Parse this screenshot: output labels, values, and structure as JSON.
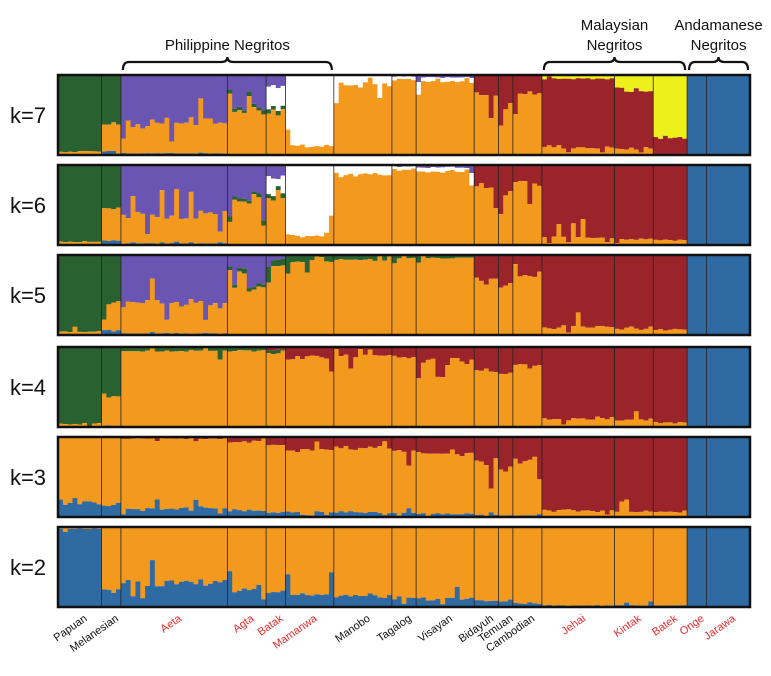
{
  "chart_data": {
    "type": "stacked-bar",
    "title": "",
    "colors": {
      "dark_green": "#2a6131",
      "orange": "#f39a1e",
      "blue": "#2f6aa3",
      "red": "#9b242b",
      "purple": "#6a55b3",
      "white": "#ffffff",
      "yellow": "#eef01c",
      "black_label": "#111111",
      "red_label": "#e52d2d"
    },
    "group_labels": [
      {
        "lines": [
          "Philippine Negritos"
        ],
        "pops": [
          "Aeta",
          "Mamanwa"
        ]
      },
      {
        "lines": [
          "Malaysian",
          "Negritos"
        ],
        "pops": [
          "Jehai",
          "Batek"
        ]
      },
      {
        "lines": [
          "Andamanese",
          "Negritos"
        ],
        "pops": [
          "Onge",
          "Jarawa"
        ]
      }
    ],
    "populations": [
      {
        "name": "Papuan",
        "color_key": "black_label",
        "n": 9
      },
      {
        "name": "Melanesian",
        "color_key": "black_label",
        "n": 4
      },
      {
        "name": "Aeta",
        "color_key": "red_label",
        "n": 22
      },
      {
        "name": "Agta",
        "color_key": "red_label",
        "n": 8
      },
      {
        "name": "Batak",
        "color_key": "red_label",
        "n": 4
      },
      {
        "name": "Mamanwa",
        "color_key": "red_label",
        "n": 10
      },
      {
        "name": "Manobo",
        "color_key": "black_label",
        "n": 12
      },
      {
        "name": "Tagalog",
        "color_key": "black_label",
        "n": 5
      },
      {
        "name": "Visayan",
        "color_key": "black_label",
        "n": 12
      },
      {
        "name": "Bidayuh",
        "color_key": "black_label",
        "n": 5
      },
      {
        "name": "Temuan",
        "color_key": "black_label",
        "n": 3
      },
      {
        "name": "Cambodian",
        "color_key": "black_label",
        "n": 6
      },
      {
        "name": "Jehai",
        "color_key": "red_label",
        "n": 15
      },
      {
        "name": "Kintak",
        "color_key": "red_label",
        "n": 8
      },
      {
        "name": "Batek",
        "color_key": "red_label",
        "n": 7
      },
      {
        "name": "Onge",
        "color_key": "red_label",
        "n": 4
      },
      {
        "name": "Jarawa",
        "color_key": "red_label",
        "n": 9
      }
    ],
    "panels": [
      {
        "k_label": "k=7",
        "proportions": {
          "Papuan": {
            "dark_green": 0.96,
            "orange": 0.04
          },
          "Melanesian": {
            "dark_green": 0.6,
            "orange": 0.35,
            "blue": 0.05
          },
          "Aeta": {
            "purple": 0.6,
            "orange": 0.38,
            "blue": 0.02
          },
          "Agta": {
            "purple": 0.4,
            "orange": 0.56,
            "dark_green": 0.04
          },
          "Batak": {
            "purple": 0.15,
            "white": 0.25,
            "orange": 0.55,
            "dark_green": 0.05
          },
          "Mamanwa": {
            "white": 0.88,
            "orange": 0.12
          },
          "Manobo": {
            "white": 0.12,
            "orange": 0.88
          },
          "Tagalog": {
            "purple": 0.02,
            "white": 0.04,
            "orange": 0.94
          },
          "Visayan": {
            "purple": 0.03,
            "white": 0.05,
            "orange": 0.92
          },
          "Bidayuh": {
            "red": 0.25,
            "orange": 0.75
          },
          "Temuan": {
            "red": 0.35,
            "orange": 0.65
          },
          "Cambodian": {
            "red": 0.22,
            "orange": 0.78
          },
          "Jehai": {
            "yellow": 0.05,
            "red": 0.85,
            "orange": 0.1
          },
          "Kintak": {
            "yellow": 0.18,
            "red": 0.74,
            "orange": 0.08
          },
          "Batek": {
            "yellow": 0.78,
            "red": 0.22
          },
          "Onge": {
            "blue": 1.0
          },
          "Jarawa": {
            "blue": 1.0
          }
        }
      },
      {
        "k_label": "k=6",
        "proportions": {
          "Papuan": {
            "dark_green": 0.96,
            "orange": 0.04
          },
          "Melanesian": {
            "dark_green": 0.6,
            "orange": 0.35,
            "blue": 0.05
          },
          "Aeta": {
            "purple": 0.62,
            "orange": 0.36,
            "blue": 0.02
          },
          "Agta": {
            "purple": 0.4,
            "orange": 0.56,
            "dark_green": 0.04
          },
          "Batak": {
            "purple": 0.15,
            "white": 0.25,
            "orange": 0.55,
            "dark_green": 0.05
          },
          "Mamanwa": {
            "white": 0.88,
            "orange": 0.12
          },
          "Manobo": {
            "white": 0.12,
            "orange": 0.88
          },
          "Tagalog": {
            "purple": 0.02,
            "white": 0.04,
            "orange": 0.94
          },
          "Visayan": {
            "purple": 0.03,
            "white": 0.05,
            "orange": 0.92
          },
          "Bidayuh": {
            "red": 0.25,
            "orange": 0.75
          },
          "Temuan": {
            "red": 0.35,
            "orange": 0.65
          },
          "Cambodian": {
            "red": 0.22,
            "orange": 0.78
          },
          "Jehai": {
            "red": 0.9,
            "orange": 0.1
          },
          "Kintak": {
            "red": 0.92,
            "orange": 0.08
          },
          "Batek": {
            "red": 0.94,
            "orange": 0.06
          },
          "Onge": {
            "blue": 1.0
          },
          "Jarawa": {
            "blue": 1.0
          }
        }
      },
      {
        "k_label": "k=5",
        "proportions": {
          "Papuan": {
            "dark_green": 0.96,
            "orange": 0.04
          },
          "Melanesian": {
            "dark_green": 0.6,
            "orange": 0.35,
            "blue": 0.05
          },
          "Aeta": {
            "purple": 0.6,
            "orange": 0.38,
            "blue": 0.02
          },
          "Agta": {
            "purple": 0.38,
            "orange": 0.58,
            "dark_green": 0.04
          },
          "Batak": {
            "purple": 0.05,
            "dark_green": 0.08,
            "orange": 0.87
          },
          "Mamanwa": {
            "dark_green": 0.08,
            "orange": 0.92
          },
          "Manobo": {
            "dark_green": 0.06,
            "orange": 0.94
          },
          "Tagalog": {
            "dark_green": 0.04,
            "orange": 0.96
          },
          "Visayan": {
            "dark_green": 0.04,
            "orange": 0.96
          },
          "Bidayuh": {
            "red": 0.3,
            "orange": 0.7
          },
          "Temuan": {
            "red": 0.35,
            "orange": 0.65
          },
          "Cambodian": {
            "red": 0.25,
            "orange": 0.75
          },
          "Jehai": {
            "red": 0.9,
            "orange": 0.1
          },
          "Kintak": {
            "red": 0.92,
            "orange": 0.08
          },
          "Batek": {
            "red": 0.94,
            "orange": 0.06
          },
          "Onge": {
            "blue": 1.0
          },
          "Jarawa": {
            "blue": 1.0
          }
        }
      },
      {
        "k_label": "k=4",
        "proportions": {
          "Papuan": {
            "dark_green": 0.96,
            "orange": 0.04
          },
          "Melanesian": {
            "dark_green": 0.6,
            "orange": 0.38,
            "blue": 0.02
          },
          "Aeta": {
            "dark_green": 0.05,
            "orange": 0.95
          },
          "Agta": {
            "dark_green": 0.05,
            "orange": 0.95
          },
          "Batak": {
            "dark_green": 0.04,
            "red": 0.04,
            "orange": 0.92
          },
          "Mamanwa": {
            "red": 0.12,
            "orange": 0.88
          },
          "Manobo": {
            "red": 0.1,
            "orange": 0.9
          },
          "Tagalog": {
            "red": 0.12,
            "orange": 0.88
          },
          "Visayan": {
            "red": 0.18,
            "orange": 0.82
          },
          "Bidayuh": {
            "red": 0.3,
            "orange": 0.7
          },
          "Temuan": {
            "red": 0.35,
            "orange": 0.65
          },
          "Cambodian": {
            "red": 0.25,
            "orange": 0.75
          },
          "Jehai": {
            "red": 0.9,
            "orange": 0.1
          },
          "Kintak": {
            "red": 0.92,
            "orange": 0.08
          },
          "Batek": {
            "red": 0.94,
            "orange": 0.06
          },
          "Onge": {
            "blue": 1.0
          },
          "Jarawa": {
            "blue": 1.0
          }
        }
      },
      {
        "k_label": "k=3",
        "proportions": {
          "Papuan": {
            "orange": 0.8,
            "blue": 0.2
          },
          "Melanesian": {
            "orange": 0.85,
            "blue": 0.15
          },
          "Aeta": {
            "red": 0.02,
            "orange": 0.88,
            "blue": 0.1
          },
          "Agta": {
            "red": 0.06,
            "orange": 0.86,
            "blue": 0.08
          },
          "Batak": {
            "red": 0.1,
            "orange": 0.84,
            "blue": 0.06
          },
          "Mamanwa": {
            "red": 0.16,
            "orange": 0.77,
            "blue": 0.07
          },
          "Manobo": {
            "red": 0.14,
            "orange": 0.8,
            "blue": 0.06
          },
          "Tagalog": {
            "red": 0.16,
            "orange": 0.79,
            "blue": 0.05
          },
          "Visayan": {
            "red": 0.2,
            "orange": 0.76,
            "blue": 0.04
          },
          "Bidayuh": {
            "red": 0.32,
            "orange": 0.65,
            "blue": 0.03
          },
          "Temuan": {
            "red": 0.38,
            "orange": 0.6,
            "blue": 0.02
          },
          "Cambodian": {
            "red": 0.28,
            "orange": 0.7,
            "blue": 0.02
          },
          "Jehai": {
            "red": 0.92,
            "orange": 0.08
          },
          "Kintak": {
            "red": 0.93,
            "orange": 0.07
          },
          "Batek": {
            "red": 0.94,
            "orange": 0.06
          },
          "Onge": {
            "blue": 1.0
          },
          "Jarawa": {
            "blue": 1.0
          }
        }
      },
      {
        "k_label": "k=2",
        "proportions": {
          "Papuan": {
            "orange": 0.02,
            "blue": 0.98
          },
          "Melanesian": {
            "orange": 0.8,
            "blue": 0.2
          },
          "Aeta": {
            "orange": 0.7,
            "blue": 0.3
          },
          "Agta": {
            "orange": 0.78,
            "blue": 0.22
          },
          "Batak": {
            "orange": 0.82,
            "blue": 0.18
          },
          "Mamanwa": {
            "orange": 0.84,
            "blue": 0.16
          },
          "Manobo": {
            "orange": 0.86,
            "blue": 0.14
          },
          "Tagalog": {
            "orange": 0.88,
            "blue": 0.12
          },
          "Visayan": {
            "orange": 0.9,
            "blue": 0.1
          },
          "Bidayuh": {
            "orange": 0.92,
            "blue": 0.08
          },
          "Temuan": {
            "orange": 0.93,
            "blue": 0.07
          },
          "Cambodian": {
            "orange": 0.95,
            "blue": 0.05
          },
          "Jehai": {
            "orange": 0.98,
            "blue": 0.02
          },
          "Kintak": {
            "orange": 0.98,
            "blue": 0.02
          },
          "Batek": {
            "orange": 0.98,
            "blue": 0.02
          },
          "Onge": {
            "blue": 1.0
          },
          "Jarawa": {
            "blue": 1.0
          }
        }
      }
    ]
  }
}
